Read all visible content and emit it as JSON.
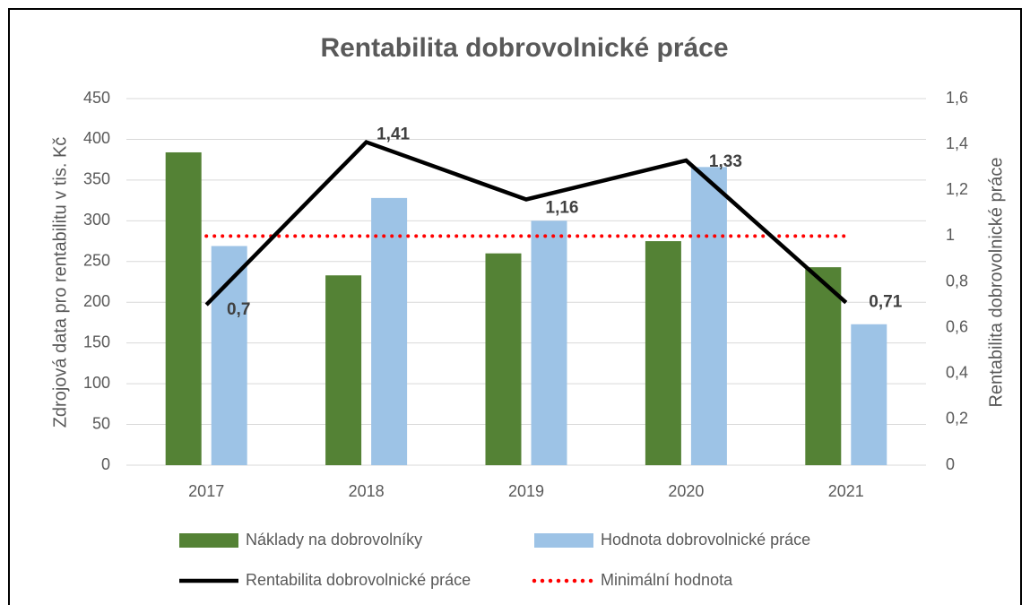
{
  "chart_data": {
    "type": "bar",
    "title": "Rentabilita dobrovolnické práce",
    "y_label": "Zdrojová data pro rentabilitu v tis. Kč",
    "y2_label": "Rentabilita dobrovolnické práce",
    "categories": [
      "2017",
      "2018",
      "2019",
      "2020",
      "2021"
    ],
    "series": [
      {
        "name": "Náklady na dobrovolníky",
        "type": "bar",
        "color": "#548235",
        "values": [
          384,
          233,
          260,
          275,
          243
        ]
      },
      {
        "name": "Hodnota dobrovolnické práce",
        "type": "bar",
        "color": "#9dc3e6",
        "values": [
          269,
          328,
          300,
          366,
          173
        ]
      },
      {
        "name": "Rentabilita dobrovolnické práce",
        "type": "line",
        "axis": "y2",
        "color": "#000000",
        "values": [
          0.7,
          1.41,
          1.16,
          1.33,
          0.71
        ],
        "value_labels": [
          "0,7",
          "1,41",
          "1,16",
          "1,33",
          "0,71"
        ]
      },
      {
        "name": "Minimální hodnota",
        "type": "line",
        "axis": "y2",
        "dotted": true,
        "color": "#ff0000",
        "values": [
          1,
          1,
          1,
          1,
          1
        ]
      }
    ],
    "ylim": [
      0,
      450
    ],
    "yticks": [
      0,
      50,
      100,
      150,
      200,
      250,
      300,
      350,
      400,
      450
    ],
    "y2lim": [
      0,
      1.6
    ],
    "y2ticks": [
      0,
      {
        "value": 0.2,
        "label": "0,2"
      },
      {
        "value": 0.4,
        "label": "0,4"
      },
      {
        "value": 0.6,
        "label": "0,6"
      },
      {
        "value": 0.8,
        "label": "0,8"
      },
      1,
      {
        "value": 1.2,
        "label": "1,2"
      },
      {
        "value": 1.4,
        "label": "1,4"
      },
      {
        "value": 1.6,
        "label": "1,6"
      }
    ],
    "grid": true,
    "legend": "bottom"
  }
}
